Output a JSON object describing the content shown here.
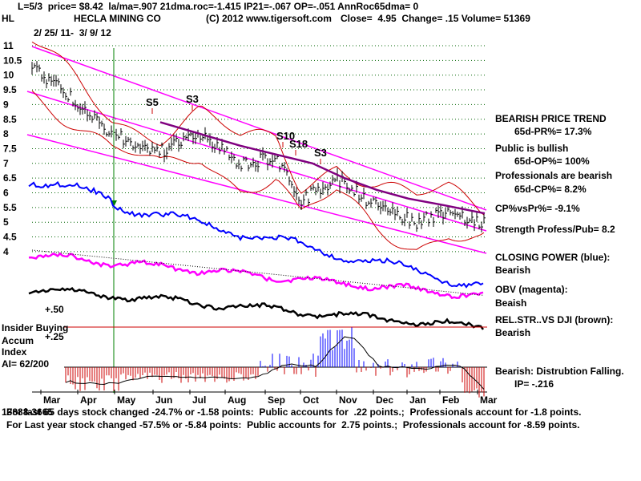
{
  "header": {
    "line1": "L=5/3  price= $8.42  la/ma=.907 21dma.roc=-1.415 IP21=-.067 OP=-.051 AnnRoc65dma= 0",
    "ticker": "HL",
    "company": "HECLA MINING CO",
    "copyright": "(C) 2012 www.tigersoft.com",
    "close": "Close=  4.95  Change= .15 Volume= 51369",
    "date_range": "2/ 25/ 11-  3/ 9/ 12"
  },
  "chart_data": {
    "type": "line",
    "title": "HECLA MINING CO",
    "price_ticks": [
      "11",
      "10.5",
      "10",
      "9.5",
      "9",
      "8.5",
      "8",
      "7.5",
      "7",
      "6.5",
      "6",
      "5.5",
      "5",
      "4.5",
      "4"
    ],
    "months": [
      "Mar",
      "Apr",
      "May",
      "Jun",
      "Jul",
      "Aug",
      "Sep",
      "Oct",
      "Nov",
      "Dec",
      "Jan",
      "Feb",
      "Mar"
    ],
    "signals": [
      "S5",
      "S3",
      "S10",
      "S18",
      "S3"
    ],
    "indicator_labels": [
      "+.50",
      "+.25"
    ],
    "price_series": {
      "x": [
        "Mar",
        "Apr",
        "May",
        "Jun",
        "Jul",
        "Aug",
        "Sep",
        "Oct",
        "Nov",
        "Dec",
        "Jan",
        "Feb",
        "Mar"
      ],
      "values": [
        10.3,
        9.2,
        8.0,
        7.4,
        8.0,
        7.0,
        7.2,
        5.7,
        6.5,
        5.5,
        5.0,
        5.4,
        4.95
      ]
    },
    "ma_series": {
      "x": [
        "Jun",
        "Jul",
        "Aug",
        "Sep",
        "Oct",
        "Nov",
        "Dec",
        "Jan",
        "Feb",
        "Mar"
      ],
      "values": [
        8.4,
        8.0,
        7.6,
        7.3,
        7.0,
        6.5,
        6.1,
        5.8,
        5.6,
        5.3
      ]
    },
    "ylim": [
      4,
      11
    ],
    "grid": true
  },
  "right_panel": {
    "trend": "BEARISH PRICE TREND",
    "pr": "65d-PR%= 17.3%",
    "public": "Public is bullish",
    "op": "65d-OP%= 100%",
    "pros": "Professionals are bearish",
    "cp": "65d-CP%= 8.2%",
    "cpvspr": "CP%vsPr%= -9.1%",
    "strength": "Strength Profess/Pub= 8.2",
    "closing_power": "CLOSING POWER (blue):",
    "closing_power_v": "Bearish",
    "obv": "OBV (magenta):",
    "obv_v": "Beaish",
    "relstr": "REL.STR..VS DJI (brown):",
    "relstr_v": "Bearish",
    "distribution": "Bearish: Distrubtion Falling.",
    "ip": "IP= -.216"
  },
  "left_labels": {
    "insider": "Insider Buying",
    "accum": "Accum",
    "index": "Index",
    "ai": "AI= 62/200",
    "overlap": "13888-3665"
  },
  "footer": {
    "line1": "For last 65 days stock changed -24.7% or -1.58 points:  Public accounts for  .22 points.;  Professionals account for -1.8 points.",
    "line2": "For Last year stock changed -57.5% or -5.84 points:  Public accounts for  2.75 points.;  Professionals account for -8.59 points."
  },
  "colors": {
    "channel": "#ff00ff",
    "bands": "#cc0000",
    "ma": "#800080",
    "closing_power": "#0000ff",
    "obv": "#ff00ff",
    "relstr": "#000000",
    "dots": "#006400",
    "accum_pos": "#0000ff",
    "accum_neg": "#cc0000"
  }
}
